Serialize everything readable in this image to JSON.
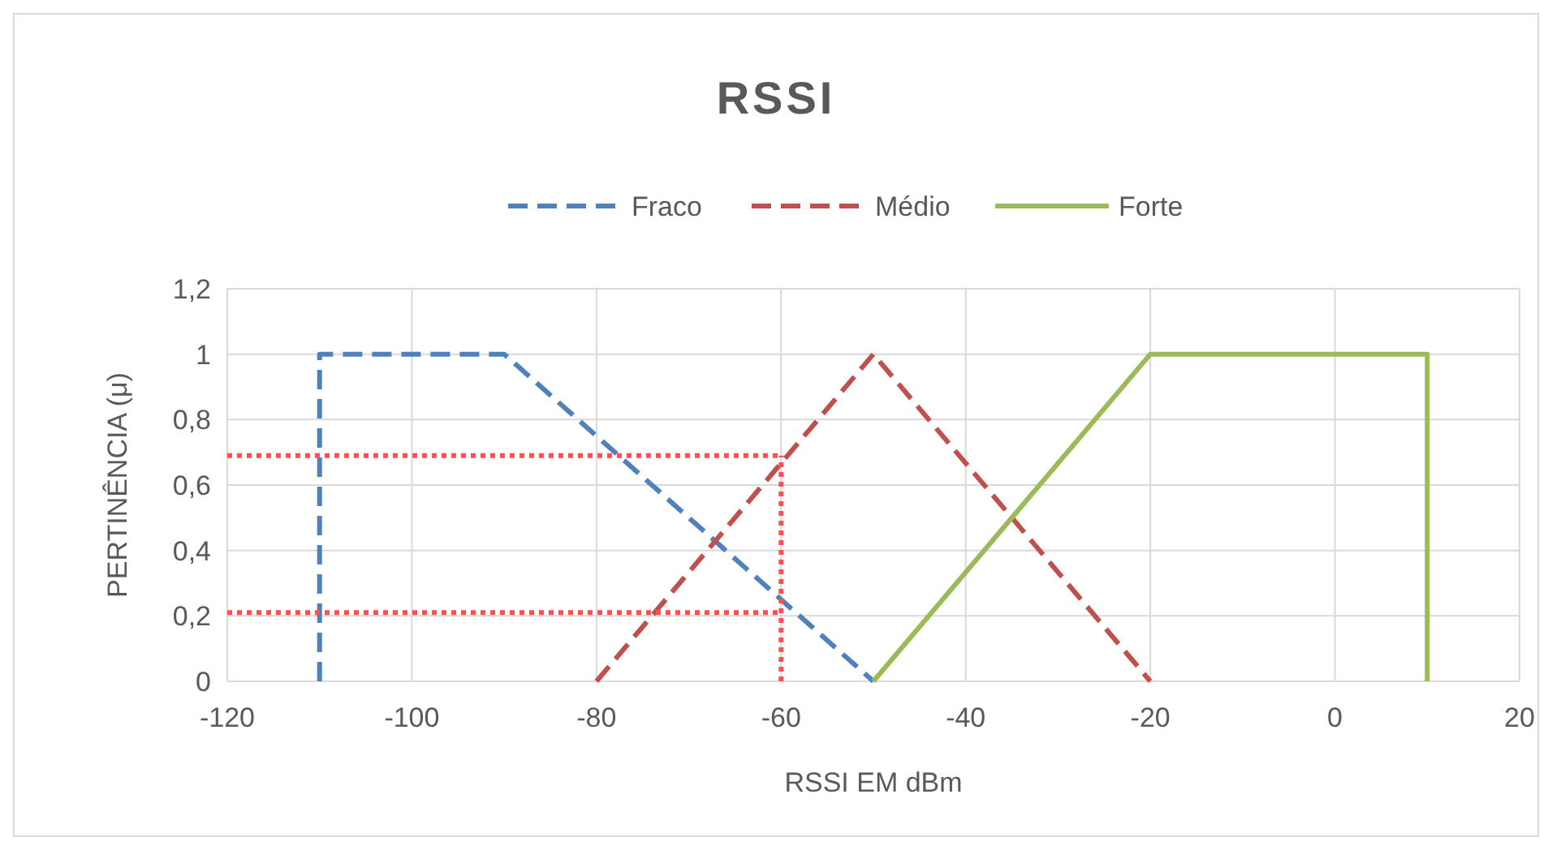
{
  "chart_data": {
    "type": "line",
    "title": "RSSI",
    "xlabel": "RSSI EM dBm",
    "ylabel": "PERTINÊNCIA (μ)",
    "xlim": [
      -120,
      20
    ],
    "xticks": [
      -120,
      -100,
      -80,
      -60,
      -40,
      -20,
      0,
      20
    ],
    "ylim": [
      0,
      1.2
    ],
    "yticks": [
      {
        "value": 0,
        "label": "0"
      },
      {
        "value": 0.2,
        "label": "0,2"
      },
      {
        "value": 0.4,
        "label": "0,4"
      },
      {
        "value": 0.6,
        "label": "0,6"
      },
      {
        "value": 0.8,
        "label": "0,8"
      },
      {
        "value": 1,
        "label": "1"
      },
      {
        "value": 1.2,
        "label": "1,2"
      }
    ],
    "grid": true,
    "legend": "top",
    "series": [
      {
        "name": "Fraco",
        "color": "#4f81bd",
        "line_style": "dashed",
        "x": [
          -110,
          -110,
          -90,
          -50
        ],
        "values": [
          0,
          1,
          1,
          0
        ]
      },
      {
        "name": "Médio",
        "color": "#c0504d",
        "line_style": "dashed",
        "x": [
          -80,
          -50,
          -20
        ],
        "values": [
          0,
          1,
          0
        ]
      },
      {
        "name": "Forte",
        "color": "#9bbb59",
        "line_style": "solid",
        "x": [
          -50,
          -20,
          10,
          10
        ],
        "values": [
          0,
          1,
          1,
          0
        ]
      },
      {
        "color": "#ff5050",
        "line_style": "dotted",
        "x": [
          -120,
          -60
        ],
        "values": [
          0.69,
          0.69
        ]
      },
      {
        "color": "#ff5050",
        "line_style": "dotted",
        "x": [
          -120,
          -60
        ],
        "values": [
          0.21,
          0.21
        ]
      },
      {
        "color": "#ff5050",
        "line_style": "dotted",
        "x": [
          -60,
          -60
        ],
        "values": [
          0,
          0.69
        ]
      }
    ]
  }
}
